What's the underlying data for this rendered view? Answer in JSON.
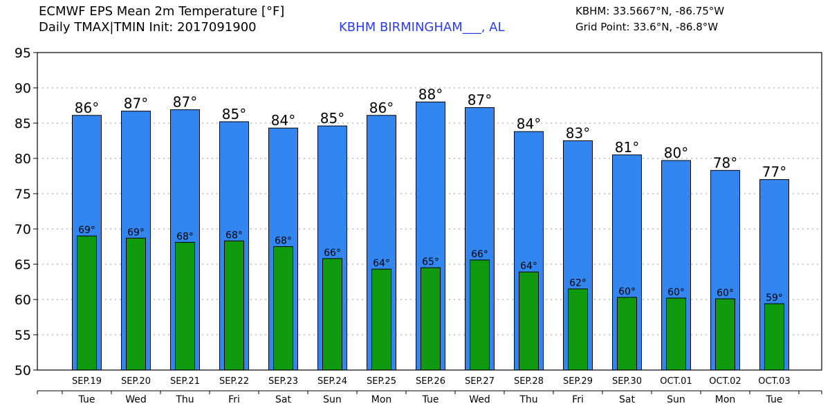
{
  "header": {
    "title_line1": "ECMWF EPS Mean 2m Temperature [°F]",
    "title_line2": "Daily TMAX|TMIN Init: 2017091900",
    "location": "KBHM BIRMINGHAM___, AL",
    "station_coords": "KBHM: 33.5667°N, -86.75°W",
    "grid_point": "Grid Point: 33.6°N, -86.8°W"
  },
  "colors": {
    "tmax_bar": "#3385f0",
    "tmin_bar": "#0f9a0f",
    "grid": "#999999",
    "location_text": "#2b3df0"
  },
  "chart_data": {
    "type": "bar",
    "title": "ECMWF EPS Mean 2m Temperature [°F]",
    "subtitle": "Daily TMAX|TMIN Init: 2017091900",
    "categories": [
      "SEP.19",
      "SEP.20",
      "SEP.21",
      "SEP.22",
      "SEP.23",
      "SEP.24",
      "SEP.25",
      "SEP.26",
      "SEP.27",
      "SEP.28",
      "SEP.29",
      "SEP.30",
      "OCT.01",
      "OCT.02",
      "OCT.03"
    ],
    "days": [
      "Tue",
      "Wed",
      "Thu",
      "Fri",
      "Sat",
      "Sun",
      "Mon",
      "Tue",
      "Wed",
      "Thu",
      "Fri",
      "Sat",
      "Sun",
      "Mon",
      "Tue"
    ],
    "series": [
      {
        "values": [
          86.1,
          86.7,
          86.9,
          85.2,
          84.3,
          84.6,
          86.1,
          88.0,
          87.2,
          83.8,
          82.5,
          80.5,
          79.7,
          78.3,
          77.0
        ],
        "labels": [
          "86°",
          "87°",
          "87°",
          "85°",
          "84°",
          "85°",
          "86°",
          "88°",
          "87°",
          "84°",
          "83°",
          "81°",
          "80°",
          "78°",
          "77°"
        ]
      },
      {
        "values": [
          69.0,
          68.7,
          68.1,
          68.3,
          67.5,
          65.8,
          64.3,
          64.5,
          65.6,
          63.9,
          61.5,
          60.3,
          60.2,
          60.1,
          59.4
        ],
        "labels": [
          "69°",
          "69°",
          "68°",
          "68°",
          "68°",
          "66°",
          "64°",
          "65°",
          "66°",
          "64°",
          "62°",
          "60°",
          "60°",
          "60°",
          "59°"
        ]
      }
    ],
    "ylim": [
      50,
      95
    ],
    "yticks": [
      50,
      55,
      60,
      65,
      70,
      75,
      80,
      85,
      90,
      95
    ],
    "grid": true,
    "xlabel": "",
    "ylabel": ""
  }
}
